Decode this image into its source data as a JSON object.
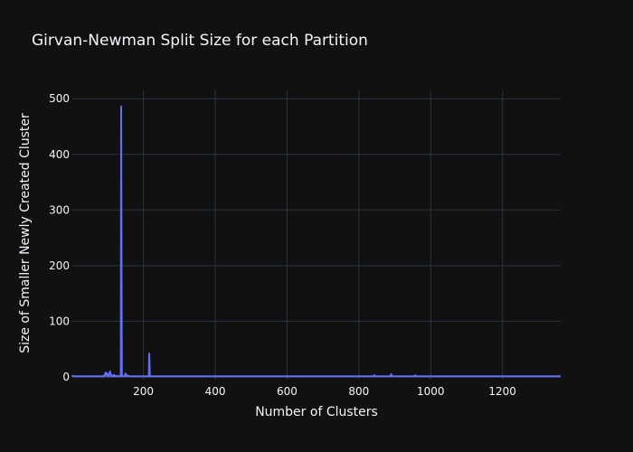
{
  "chart_data": {
    "type": "line",
    "title": "Girvan-Newman Split Size for each Partition",
    "xlabel": "Number of Clusters",
    "ylabel": "Size of Smaller Newly Created Cluster",
    "xlim": [
      2,
      1362
    ],
    "ylim": [
      -5,
      515
    ],
    "xticks": [
      200,
      400,
      600,
      800,
      1000,
      1200
    ],
    "yticks": [
      0,
      100,
      200,
      300,
      400,
      500
    ],
    "grid": true,
    "colors": {
      "background": "#111111",
      "series": "#636efa",
      "grid": "#283442",
      "text": "#f2f5fa"
    },
    "series": [
      {
        "x": [
          2,
          3,
          4,
          5,
          6,
          90,
          95,
          97,
          100,
          102,
          105,
          107,
          110,
          112,
          115,
          118,
          120,
          125,
          130,
          135,
          137,
          138,
          139,
          140,
          141,
          143,
          148,
          150,
          152,
          155,
          160,
          165,
          210,
          215,
          216,
          217,
          218,
          219,
          221,
          225,
          300,
          400,
          500,
          600,
          700,
          800,
          840,
          843,
          845,
          847,
          850,
          880,
          888,
          890,
          892,
          895,
          950,
          955,
          957,
          960,
          1000,
          1100,
          1200,
          1300,
          1362
        ],
        "y": [
          3,
          1,
          2,
          1,
          1,
          1,
          8,
          2,
          6,
          1,
          4,
          10,
          1,
          3,
          1,
          4,
          1,
          2,
          1,
          2,
          1,
          486,
          200,
          1,
          1,
          1,
          2,
          6,
          1,
          3,
          1,
          1,
          1,
          1,
          42,
          20,
          1,
          1,
          1,
          1,
          1,
          1,
          1,
          1,
          1,
          1,
          1,
          3,
          2,
          1,
          1,
          1,
          1,
          5,
          2,
          1,
          1,
          1,
          3,
          1,
          1,
          1,
          1,
          1,
          1
        ]
      }
    ]
  }
}
